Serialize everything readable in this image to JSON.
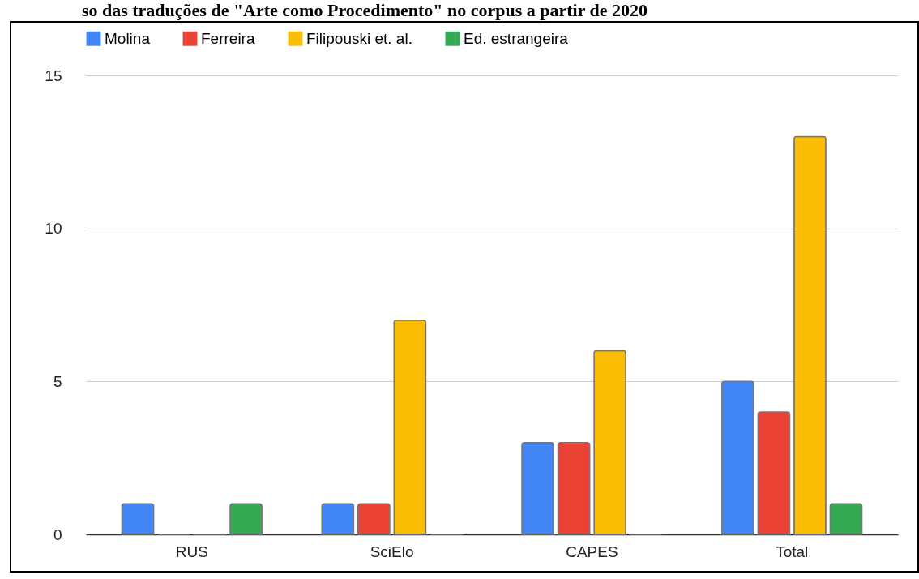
{
  "chart_data": {
    "type": "bar",
    "title": "so das traduções de \"Arte como Procedimento\" no corpus a partir de 2020",
    "categories": [
      "RUS",
      "SciElo",
      "CAPES",
      "Total"
    ],
    "series": [
      {
        "name": "Molina",
        "color": "#4285f4",
        "values": [
          1,
          1,
          3,
          5
        ]
      },
      {
        "name": "Ferreira",
        "color": "#ea4335",
        "values": [
          0,
          1,
          3,
          4
        ]
      },
      {
        "name": "Filipouski et. al.",
        "color": "#fbbc04",
        "values": [
          0,
          7,
          6,
          13
        ]
      },
      {
        "name": "Ed. estrangeira",
        "color": "#34a853",
        "values": [
          1,
          0,
          0,
          1
        ]
      }
    ],
    "ylim": [
      0,
      15
    ],
    "yticks": [
      0,
      5,
      10,
      15
    ],
    "grid": "y",
    "legend": "top"
  }
}
